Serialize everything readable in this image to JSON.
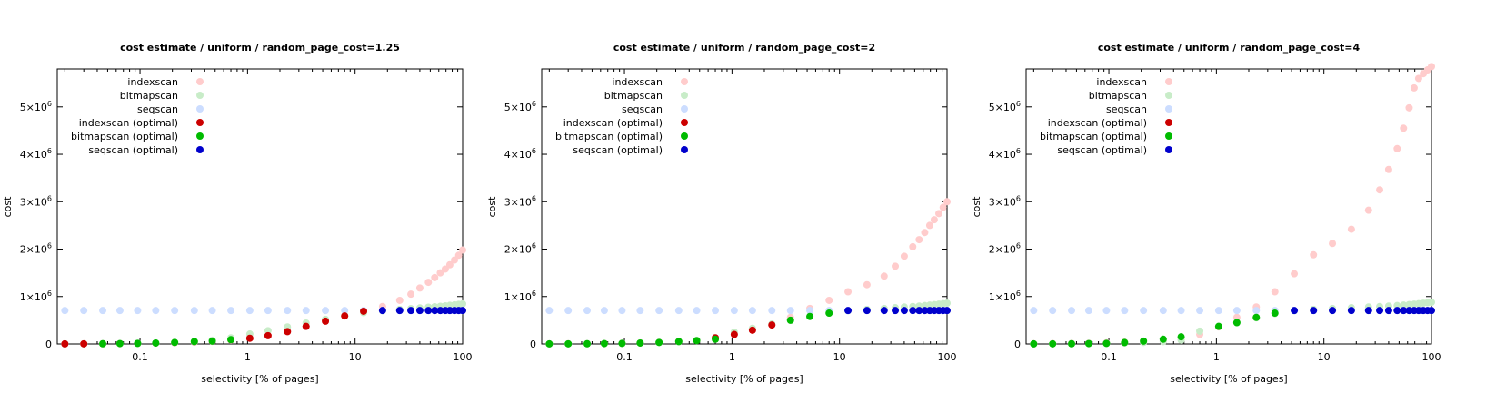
{
  "chart_data": [
    {
      "type": "scatter",
      "title": "cost estimate / uniform / random_page_cost=1.25",
      "xlabel": "selectivity [% of pages]",
      "ylabel": "cost",
      "x_scale": "log",
      "xlim": [
        0.017,
        100
      ],
      "ylim": [
        0,
        5800000
      ],
      "grid": false,
      "legend_position": "top-left",
      "x_ticks": [
        {
          "value": 0.1,
          "label": "0.1"
        },
        {
          "value": 1,
          "label": "1"
        },
        {
          "value": 10,
          "label": "10"
        },
        {
          "value": 100,
          "label": "100"
        }
      ],
      "y_ticks": [
        {
          "value": 0,
          "base": "0",
          "exp": ""
        },
        {
          "value": 1000000,
          "base": "1×10",
          "exp": "6"
        },
        {
          "value": 2000000,
          "base": "2×10",
          "exp": "6"
        },
        {
          "value": 3000000,
          "base": "3×10",
          "exp": "6"
        },
        {
          "value": 4000000,
          "base": "4×10",
          "exp": "6"
        },
        {
          "value": 5000000,
          "base": "5×10",
          "exp": "6"
        }
      ],
      "series": [
        {
          "name": "indexscan",
          "color": "#ffcccc",
          "x": [
            0.02,
            0.03,
            0.045,
            0.065,
            0.095,
            0.14,
            0.21,
            0.32,
            0.47,
            0.7,
            1.05,
            1.55,
            2.35,
            3.5,
            5.3,
            8,
            12,
            18,
            26,
            33,
            40,
            48,
            55,
            62,
            69,
            76,
            84,
            92,
            100
          ],
          "y": [
            2000,
            3000,
            5000,
            7000,
            10000,
            16000,
            24000,
            36000,
            53000,
            80000,
            120000,
            175000,
            260000,
            370000,
            480000,
            590000,
            690000,
            790000,
            920000,
            1050000,
            1180000,
            1300000,
            1400000,
            1500000,
            1580000,
            1670000,
            1770000,
            1870000,
            1980000
          ]
        },
        {
          "name": "bitmapscan",
          "color": "#c8ecc8",
          "x": [
            0.02,
            0.03,
            0.045,
            0.065,
            0.095,
            0.14,
            0.21,
            0.32,
            0.47,
            0.7,
            1.05,
            1.55,
            2.35,
            3.5,
            5.3,
            8,
            12,
            18,
            26,
            33,
            40,
            48,
            55,
            62,
            69,
            76,
            84,
            92,
            100
          ],
          "y": [
            2000,
            3000,
            5000,
            8000,
            12000,
            20000,
            32000,
            50000,
            80000,
            130000,
            210000,
            280000,
            360000,
            440000,
            520000,
            600000,
            660000,
            700000,
            730000,
            745000,
            760000,
            775000,
            785000,
            795000,
            805000,
            815000,
            825000,
            835000,
            845000
          ]
        },
        {
          "name": "seqscan",
          "color": "#ccddff",
          "x": [
            0.02,
            0.03,
            0.045,
            0.065,
            0.095,
            0.14,
            0.21,
            0.32,
            0.47,
            0.7,
            1.05,
            1.55,
            2.35,
            3.5,
            5.3,
            8,
            12,
            18,
            26,
            33,
            40,
            48,
            55,
            62,
            69,
            76,
            84,
            92,
            100
          ],
          "y": [
            705000,
            705000,
            705000,
            705000,
            705000,
            705000,
            705000,
            705000,
            705000,
            705000,
            705000,
            705000,
            705000,
            705000,
            705000,
            705000,
            705000,
            705000,
            705000,
            705000,
            705000,
            705000,
            705000,
            705000,
            705000,
            705000,
            705000,
            705000,
            705000
          ]
        },
        {
          "name": "indexscan (optimal)",
          "color": "#cc0000",
          "x": [
            0.02,
            0.03,
            1.05,
            1.55,
            2.35,
            3.5,
            5.3,
            8,
            12
          ],
          "y": [
            2000,
            3000,
            120000,
            175000,
            260000,
            370000,
            480000,
            590000,
            690000
          ]
        },
        {
          "name": "bitmapscan (optimal)",
          "color": "#00bb00",
          "x": [
            0.045,
            0.065,
            0.095,
            0.14,
            0.21,
            0.32,
            0.47,
            0.7
          ],
          "y": [
            5000,
            8000,
            12000,
            20000,
            32000,
            50000,
            60000,
            90000
          ]
        },
        {
          "name": "seqscan (optimal)",
          "color": "#0000cc",
          "x": [
            18,
            26,
            33,
            40,
            48,
            55,
            62,
            69,
            76,
            84,
            92,
            100
          ],
          "y": [
            705000,
            705000,
            705000,
            705000,
            705000,
            705000,
            705000,
            705000,
            705000,
            705000,
            705000,
            705000
          ]
        }
      ]
    },
    {
      "type": "scatter",
      "title": "cost estimate / uniform / random_page_cost=2",
      "xlabel": "selectivity [% of pages]",
      "ylabel": "cost",
      "x_scale": "log",
      "xlim": [
        0.017,
        100
      ],
      "ylim": [
        0,
        5800000
      ],
      "grid": false,
      "legend_position": "top-left",
      "x_ticks": [
        {
          "value": 0.1,
          "label": "0.1"
        },
        {
          "value": 1,
          "label": "1"
        },
        {
          "value": 10,
          "label": "10"
        },
        {
          "value": 100,
          "label": "100"
        }
      ],
      "y_ticks": [
        {
          "value": 0,
          "base": "0",
          "exp": ""
        },
        {
          "value": 1000000,
          "base": "1×10",
          "exp": "6"
        },
        {
          "value": 2000000,
          "base": "2×10",
          "exp": "6"
        },
        {
          "value": 3000000,
          "base": "3×10",
          "exp": "6"
        },
        {
          "value": 4000000,
          "base": "4×10",
          "exp": "6"
        },
        {
          "value": 5000000,
          "base": "5×10",
          "exp": "6"
        }
      ],
      "series": [
        {
          "name": "indexscan",
          "color": "#ffcccc",
          "x": [
            0.02,
            0.03,
            0.045,
            0.065,
            0.095,
            0.14,
            0.21,
            0.32,
            0.47,
            0.7,
            1.05,
            1.55,
            2.35,
            3.5,
            5.3,
            8,
            12,
            18,
            26,
            33,
            40,
            48,
            55,
            62,
            69,
            76,
            84,
            92,
            100
          ],
          "y": [
            3000,
            4000,
            6000,
            9000,
            14000,
            22000,
            33000,
            50000,
            75000,
            110000,
            200000,
            290000,
            400000,
            560000,
            750000,
            920000,
            1100000,
            1250000,
            1430000,
            1640000,
            1850000,
            2050000,
            2200000,
            2350000,
            2500000,
            2620000,
            2750000,
            2880000,
            3000000
          ]
        },
        {
          "name": "bitmapscan",
          "color": "#c8ecc8",
          "x": [
            0.02,
            0.03,
            0.045,
            0.065,
            0.095,
            0.14,
            0.21,
            0.32,
            0.47,
            0.7,
            1.05,
            1.55,
            2.35,
            3.5,
            5.3,
            8,
            12,
            18,
            26,
            33,
            40,
            48,
            55,
            62,
            69,
            76,
            84,
            92,
            100
          ],
          "y": [
            2000,
            3000,
            5000,
            8000,
            12000,
            20000,
            32000,
            50000,
            80000,
            130000,
            250000,
            330000,
            420000,
            500000,
            580000,
            650000,
            700000,
            730000,
            750000,
            765000,
            780000,
            790000,
            800000,
            810000,
            820000,
            830000,
            840000,
            850000,
            860000
          ]
        },
        {
          "name": "seqscan",
          "color": "#ccddff",
          "x": [
            0.02,
            0.03,
            0.045,
            0.065,
            0.095,
            0.14,
            0.21,
            0.32,
            0.47,
            0.7,
            1.05,
            1.55,
            2.35,
            3.5,
            5.3,
            8,
            12,
            18,
            26,
            33,
            40,
            48,
            55,
            62,
            69,
            76,
            84,
            92,
            100
          ],
          "y": [
            705000,
            705000,
            705000,
            705000,
            705000,
            705000,
            705000,
            705000,
            705000,
            705000,
            705000,
            705000,
            705000,
            705000,
            705000,
            705000,
            705000,
            705000,
            705000,
            705000,
            705000,
            705000,
            705000,
            705000,
            705000,
            705000,
            705000,
            705000,
            705000
          ]
        },
        {
          "name": "indexscan (optimal)",
          "color": "#cc0000",
          "x": [
            0.7,
            1.05,
            1.55,
            2.35
          ],
          "y": [
            130000,
            200000,
            290000,
            400000
          ]
        },
        {
          "name": "bitmapscan (optimal)",
          "color": "#00bb00",
          "x": [
            0.02,
            0.03,
            0.045,
            0.065,
            0.095,
            0.14,
            0.21,
            0.32,
            0.47,
            0.7,
            3.5,
            5.3,
            8
          ],
          "y": [
            2000,
            3000,
            5000,
            8000,
            12000,
            20000,
            32000,
            50000,
            70000,
            100000,
            500000,
            580000,
            650000
          ]
        },
        {
          "name": "seqscan (optimal)",
          "color": "#0000cc",
          "x": [
            12,
            18,
            26,
            33,
            40,
            48,
            55,
            62,
            69,
            76,
            84,
            92,
            100
          ],
          "y": [
            705000,
            705000,
            705000,
            705000,
            705000,
            705000,
            705000,
            705000,
            705000,
            705000,
            705000,
            705000,
            705000
          ]
        }
      ]
    },
    {
      "type": "scatter",
      "title": "cost estimate / uniform / random_page_cost=4",
      "xlabel": "selectivity [% of pages]",
      "ylabel": "cost",
      "x_scale": "log",
      "xlim": [
        0.017,
        100
      ],
      "ylim": [
        0,
        5800000
      ],
      "grid": false,
      "legend_position": "top-left",
      "x_ticks": [
        {
          "value": 0.1,
          "label": "0.1"
        },
        {
          "value": 1,
          "label": "1"
        },
        {
          "value": 10,
          "label": "10"
        },
        {
          "value": 100,
          "label": "100"
        }
      ],
      "y_ticks": [
        {
          "value": 0,
          "base": "0",
          "exp": ""
        },
        {
          "value": 1000000,
          "base": "1×10",
          "exp": "6"
        },
        {
          "value": 2000000,
          "base": "2×10",
          "exp": "6"
        },
        {
          "value": 3000000,
          "base": "3×10",
          "exp": "6"
        },
        {
          "value": 4000000,
          "base": "4×10",
          "exp": "6"
        },
        {
          "value": 5000000,
          "base": "5×10",
          "exp": "6"
        }
      ],
      "series": [
        {
          "name": "indexscan",
          "color": "#ffcccc",
          "x": [
            0.02,
            0.03,
            0.045,
            0.065,
            0.095,
            0.14,
            0.21,
            0.32,
            0.47,
            0.7,
            1.05,
            1.55,
            2.35,
            3.5,
            5.3,
            8,
            12,
            18,
            26,
            33,
            40,
            48,
            55,
            62,
            69,
            76,
            84,
            92,
            100
          ],
          "y": [
            4000,
            7000,
            10000,
            15000,
            23000,
            36000,
            55000,
            85000,
            130000,
            200000,
            360000,
            560000,
            780000,
            1100000,
            1480000,
            1880000,
            2120000,
            2420000,
            2820000,
            3250000,
            3680000,
            4120000,
            4550000,
            4980000,
            5400000,
            5600000,
            5700000,
            5780000,
            5850000
          ]
        },
        {
          "name": "bitmapscan",
          "color": "#c8ecc8",
          "x": [
            0.02,
            0.03,
            0.045,
            0.065,
            0.095,
            0.14,
            0.21,
            0.32,
            0.47,
            0.7,
            1.05,
            1.55,
            2.35,
            3.5,
            5.3,
            8,
            12,
            18,
            26,
            33,
            40,
            48,
            55,
            62,
            69,
            76,
            84,
            92,
            100
          ],
          "y": [
            2000,
            3000,
            5000,
            8000,
            12000,
            20000,
            32000,
            50000,
            80000,
            270000,
            370000,
            450000,
            550000,
            640000,
            700000,
            730000,
            750000,
            765000,
            780000,
            790000,
            800000,
            810000,
            820000,
            830000,
            840000,
            850000,
            860000,
            870000,
            880000
          ]
        },
        {
          "name": "seqscan",
          "color": "#ccddff",
          "x": [
            0.02,
            0.03,
            0.045,
            0.065,
            0.095,
            0.14,
            0.21,
            0.32,
            0.47,
            0.7,
            1.05,
            1.55,
            2.35,
            3.5,
            5.3,
            8,
            12,
            18,
            26,
            33,
            40,
            48,
            55,
            62,
            69,
            76,
            84,
            92,
            100
          ],
          "y": [
            705000,
            705000,
            705000,
            705000,
            705000,
            705000,
            705000,
            705000,
            705000,
            705000,
            705000,
            705000,
            705000,
            705000,
            705000,
            705000,
            705000,
            705000,
            705000,
            705000,
            705000,
            705000,
            705000,
            705000,
            705000,
            705000,
            705000,
            705000,
            705000
          ]
        },
        {
          "name": "indexscan (optimal)",
          "color": "#cc0000",
          "x": [],
          "y": []
        },
        {
          "name": "bitmapscan (optimal)",
          "color": "#00bb00",
          "x": [
            0.02,
            0.03,
            0.045,
            0.065,
            0.095,
            0.14,
            0.21,
            0.32,
            0.47,
            1.05,
            1.55,
            2.35,
            3.5
          ],
          "y": [
            2000,
            3000,
            5000,
            8000,
            12000,
            30000,
            60000,
            100000,
            150000,
            370000,
            450000,
            560000,
            650000
          ]
        },
        {
          "name": "seqscan (optimal)",
          "color": "#0000cc",
          "x": [
            5.3,
            8,
            12,
            18,
            26,
            33,
            40,
            48,
            55,
            62,
            69,
            76,
            84,
            92,
            100
          ],
          "y": [
            705000,
            705000,
            705000,
            705000,
            705000,
            705000,
            705000,
            705000,
            705000,
            705000,
            705000,
            705000,
            705000,
            705000,
            705000
          ]
        }
      ]
    }
  ]
}
